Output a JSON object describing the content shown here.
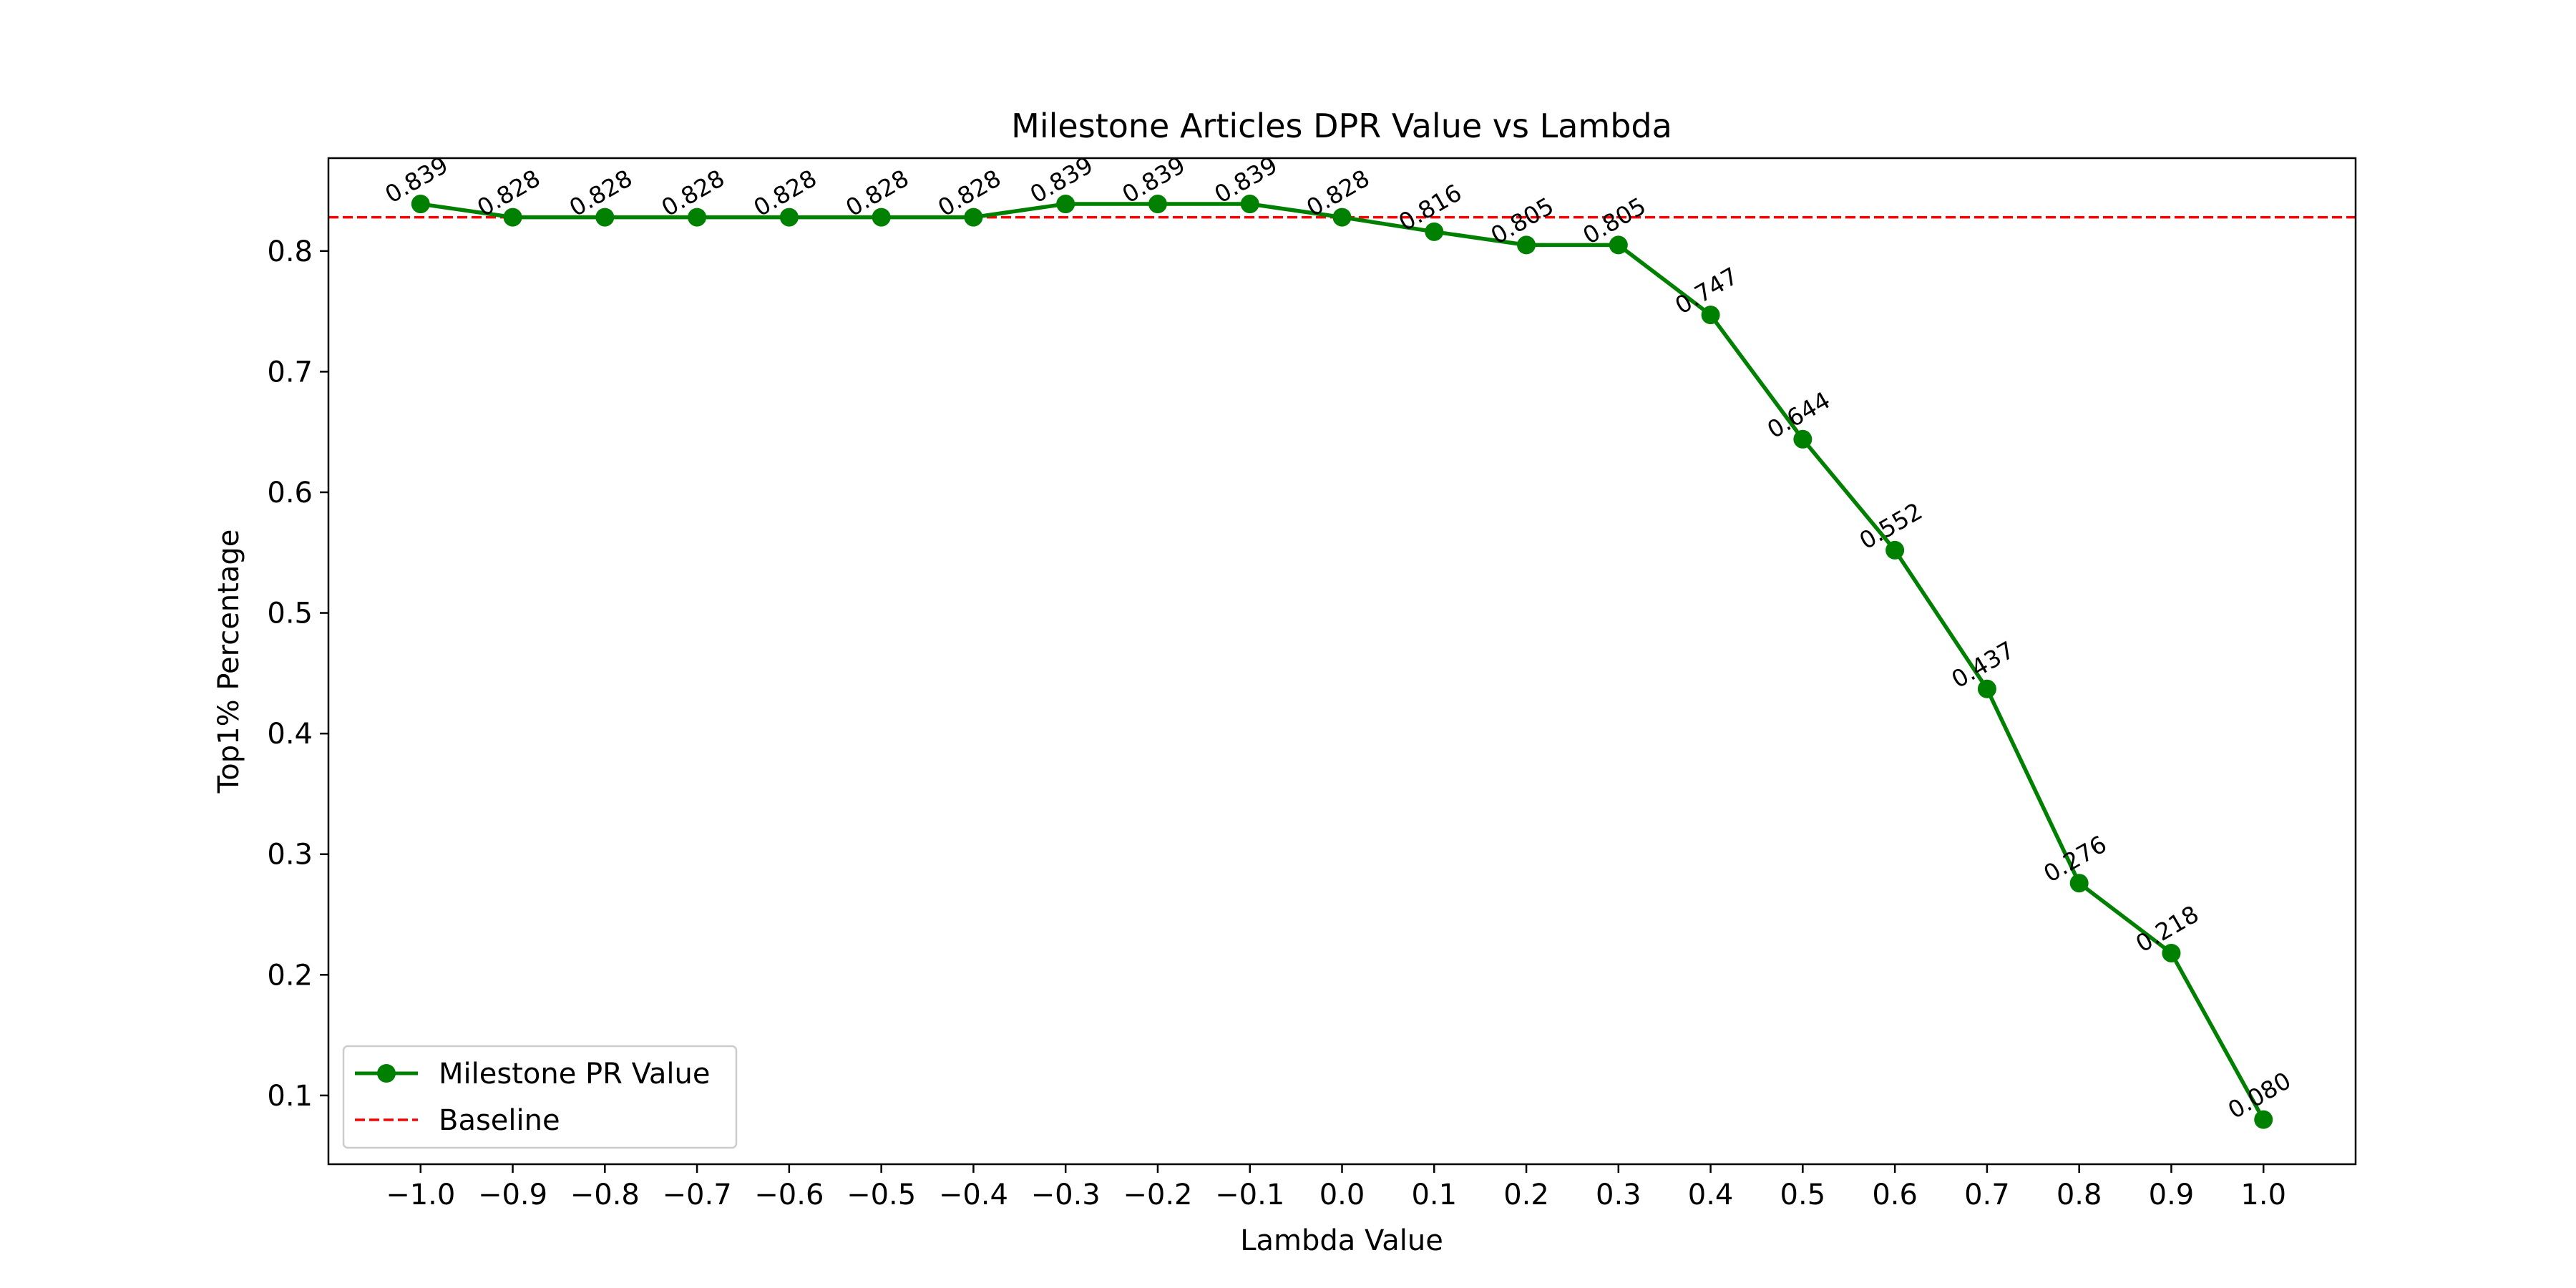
{
  "chart_data": {
    "type": "line",
    "title": "Milestone Articles DPR Value vs Lambda",
    "xlabel": "Lambda Value",
    "ylabel": "Top1% Percentage",
    "x": [
      -1.0,
      -0.9,
      -0.8,
      -0.7,
      -0.6,
      -0.5,
      -0.4,
      -0.3,
      -0.2,
      -0.1,
      0.0,
      0.1,
      0.2,
      0.3,
      0.4,
      0.5,
      0.6,
      0.7,
      0.8,
      0.9,
      1.0
    ],
    "x_tick_labels": [
      "−1.0",
      "−0.9",
      "−0.8",
      "−0.7",
      "−0.6",
      "−0.5",
      "−0.4",
      "−0.3",
      "−0.2",
      "−0.1",
      "0.0",
      "0.1",
      "0.2",
      "0.3",
      "0.4",
      "0.5",
      "0.6",
      "0.7",
      "0.8",
      "0.9",
      "1.0"
    ],
    "y_ticks": [
      0.1,
      0.2,
      0.3,
      0.4,
      0.5,
      0.6,
      0.7,
      0.8
    ],
    "y_tick_labels": [
      "0.1",
      "0.2",
      "0.3",
      "0.4",
      "0.5",
      "0.6",
      "0.7",
      "0.8"
    ],
    "xlim": [
      -1.1,
      1.1
    ],
    "ylim": [
      0.043,
      0.877
    ],
    "grid": false,
    "legend_position": "lower-left",
    "series": [
      {
        "name": "Milestone PR Value",
        "color": "#008000",
        "marker": "circle",
        "values": [
          0.839,
          0.828,
          0.828,
          0.828,
          0.828,
          0.828,
          0.828,
          0.839,
          0.839,
          0.839,
          0.828,
          0.816,
          0.805,
          0.805,
          0.747,
          0.644,
          0.552,
          0.437,
          0.276,
          0.218,
          0.08
        ],
        "labels": [
          "0.839",
          "0.828",
          "0.828",
          "0.828",
          "0.828",
          "0.828",
          "0.828",
          "0.839",
          "0.839",
          "0.839",
          "0.828",
          "0.816",
          "0.805",
          "0.805",
          "0.747",
          "0.644",
          "0.552",
          "0.437",
          "0.276",
          "0.218",
          "0.080"
        ]
      }
    ],
    "baseline": {
      "name": "Baseline",
      "value": 0.828,
      "color": "#ff0000",
      "style": "dashed"
    }
  }
}
